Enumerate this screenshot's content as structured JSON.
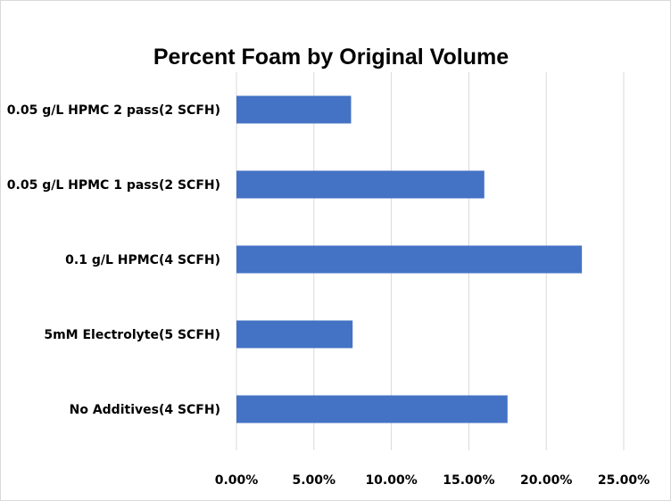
{
  "chart_data": {
    "type": "bar",
    "orientation": "horizontal",
    "title": "Percent Foam by Original Volume",
    "xlabel": "",
    "ylabel": "",
    "categories": [
      "0.05 g/L HPMC 2 pass(2 SCFH)",
      "0.05 g/L HPMC 1 pass(2 SCFH)",
      "0.1 g/L HPMC(4 SCFH)",
      "5mM Electrolyte(5 SCFH)",
      "No Additives(4 SCFH)"
    ],
    "values": [
      0.074,
      0.16,
      0.223,
      0.075,
      0.175
    ],
    "xlim": [
      0,
      0.25
    ],
    "ticks": [
      0,
      0.05,
      0.1,
      0.15,
      0.2,
      0.25
    ],
    "tick_labels": [
      "0.00%",
      "5.00%",
      "10.00%",
      "15.00%",
      "20.00%",
      "25.00%"
    ],
    "grid": "vertical",
    "bar_color": "#4472c4",
    "grid_color": "#d9d9d9"
  }
}
